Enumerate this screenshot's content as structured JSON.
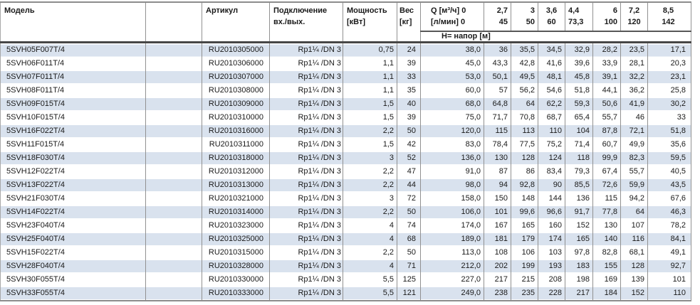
{
  "colors": {
    "stripe": "#d9e2ee",
    "grid_line": "#919191",
    "header_rule": "#575757",
    "outer_rule": "#8c8c8c",
    "text": "#1a1a1a"
  },
  "table": {
    "headers": {
      "model": "Модель",
      "empty": "",
      "article": "Артикул",
      "connection_line1": "Подключение",
      "connection_line2": "вх./вых.",
      "power_line1": "Мощность",
      "power_line2": "[кВт]",
      "weight_line1": "Вес",
      "weight_line2": "[кг]",
      "flow_line1": "Q [м³/ч] 0",
      "flow_line2": "[л/мин] 0",
      "head_row_label": "Н= напор [м]"
    },
    "flow_columns": [
      {
        "m3h": "2,7",
        "lmin": "45",
        "align": "right"
      },
      {
        "m3h": "3",
        "lmin": "50",
        "align": "right"
      },
      {
        "m3h": "3,6",
        "lmin": "60",
        "align": "center"
      },
      {
        "m3h": "4,4",
        "lmin": "73,3",
        "align": "left"
      },
      {
        "m3h": "6",
        "lmin": "100",
        "align": "right"
      },
      {
        "m3h": "7,2",
        "lmin": "120",
        "align": "center"
      },
      {
        "m3h": "8,5",
        "lmin": "142",
        "align": "center"
      }
    ],
    "rows": [
      {
        "model": "5SVH05F007T/4",
        "article": "RU2010305000",
        "connection": "Rp1¼ /DN 3",
        "power": "0,75",
        "weight": "24",
        "head_values": [
          "38,0",
          "36",
          "35,5",
          "34,5",
          "32,9",
          "28,2",
          "23,5",
          "17,1"
        ]
      },
      {
        "model": "5SVH06F011T/4",
        "article": "RU2010306000",
        "connection": "Rp1¼ /DN 3",
        "power": "1,1",
        "weight": "39",
        "head_values": [
          "45,0",
          "43,3",
          "42,8",
          "41,6",
          "39,6",
          "33,9",
          "28,1",
          "20,3"
        ]
      },
      {
        "model": "5SVH07F011T/4",
        "article": "RU2010307000",
        "connection": "Rp1¼ /DN 3",
        "power": "1,1",
        "weight": "33",
        "head_values": [
          "53,0",
          "50,1",
          "49,5",
          "48,1",
          "45,8",
          "39,1",
          "32,2",
          "23,1"
        ]
      },
      {
        "model": "5SVH08F011T/4",
        "article": "RU2010308000",
        "connection": "Rp1¼ /DN 3",
        "power": "1,1",
        "weight": "35",
        "head_values": [
          "60,0",
          "57",
          "56,2",
          "54,6",
          "51,8",
          "44,1",
          "36,2",
          "25,8"
        ]
      },
      {
        "model": "5SVH09F015T/4",
        "article": "RU2010309000",
        "connection": "Rp1¼ /DN 3",
        "power": "1,5",
        "weight": "40",
        "head_values": [
          "68,0",
          "64,8",
          "64",
          "62,2",
          "59,3",
          "50,6",
          "41,9",
          "30,2"
        ]
      },
      {
        "model": "5SVH10F015T/4",
        "article": "RU2010310000",
        "connection": "Rp1¼ /DN 3",
        "power": "1,5",
        "weight": "39",
        "head_values": [
          "75,0",
          "71,7",
          "70,8",
          "68,7",
          "65,4",
          "55,7",
          "46",
          "33"
        ]
      },
      {
        "model": "5SVH16F022T/4",
        "article": "RU2010316000",
        "connection": "Rp1¼ /DN 3",
        "power": "2,2",
        "weight": "50",
        "head_values": [
          "120,0",
          "115",
          "113",
          "110",
          "104",
          "87,8",
          "72,1",
          "51,8"
        ]
      },
      {
        "model": "5SVH11F015T/4",
        "article": "RU2010311000",
        "connection": "Rp1¼ /DN 3",
        "power": "1,5",
        "weight": "42",
        "head_values": [
          "83,0",
          "78,4",
          "77,5",
          "75,2",
          "71,4",
          "60,7",
          "49,9",
          "35,6"
        ]
      },
      {
        "model": "5SVH18F030T/4",
        "article": "RU2010318000",
        "connection": "Rp1¼ /DN 3",
        "power": "3",
        "weight": "52",
        "head_values": [
          "136,0",
          "130",
          "128",
          "124",
          "118",
          "99,9",
          "82,3",
          "59,5"
        ]
      },
      {
        "model": "5SVH12F022T/4",
        "article": "RU2010312000",
        "connection": "Rp1¼ /DN 3",
        "power": "2,2",
        "weight": "47",
        "head_values": [
          "91,0",
          "87",
          "86",
          "83,4",
          "79,3",
          "67,4",
          "55,7",
          "40,5"
        ]
      },
      {
        "model": "5SVH13F022T/4",
        "article": "RU2010313000",
        "connection": "Rp1¼ /DN 3",
        "power": "2,2",
        "weight": "44",
        "head_values": [
          "98,0",
          "94",
          "92,8",
          "90",
          "85,5",
          "72,6",
          "59,9",
          "43,5"
        ]
      },
      {
        "model": "5SVH21F030T/4",
        "article": "RU2010321000",
        "connection": "Rp1¼ /DN 3",
        "power": "3",
        "weight": "72",
        "head_values": [
          "158,0",
          "150",
          "148",
          "144",
          "136",
          "115",
          "94,2",
          "67,6"
        ]
      },
      {
        "model": "5SVH14F022T/4",
        "article": "RU2010314000",
        "connection": "Rp1¼ /DN 3",
        "power": "2,2",
        "weight": "50",
        "head_values": [
          "106,0",
          "101",
          "99,6",
          "96,6",
          "91,7",
          "77,8",
          "64",
          "46,3"
        ]
      },
      {
        "model": "5SVH23F040T/4",
        "article": "RU2010323000",
        "connection": "Rp1¼ /DN 3",
        "power": "4",
        "weight": "74",
        "head_values": [
          "174,0",
          "167",
          "165",
          "160",
          "152",
          "130",
          "107",
          "78,2"
        ]
      },
      {
        "model": "5SVH25F040T/4",
        "article": "RU2010325000",
        "connection": "Rp1¼ /DN 3",
        "power": "4",
        "weight": "68",
        "head_values": [
          "189,0",
          "181",
          "179",
          "174",
          "165",
          "140",
          "116",
          "84,1"
        ]
      },
      {
        "model": "5SVH15F022T/4",
        "article": "RU2010315000",
        "connection": "Rp1¼ /DN 3",
        "power": "2,2",
        "weight": "50",
        "head_values": [
          "113,0",
          "108",
          "106",
          "103",
          "97,8",
          "82,8",
          "68,1",
          "49,1"
        ]
      },
      {
        "model": "5SVH28F040T/4",
        "article": "RU2010328000",
        "connection": "Rp1¼ /DN 3",
        "power": "4",
        "weight": "71",
        "head_values": [
          "212,0",
          "202",
          "199",
          "193",
          "183",
          "155",
          "128",
          "92,7"
        ]
      },
      {
        "model": "5SVH30F055T/4",
        "article": "RU2010330000",
        "connection": "Rp1¼ /DN 3",
        "power": "5,5",
        "weight": "125",
        "head_values": [
          "227,0",
          "217",
          "215",
          "208",
          "198",
          "169",
          "139",
          "101"
        ]
      },
      {
        "model": "5SVH33F055T/4",
        "article": "RU2010333000",
        "connection": "Rp1¼ /DN 3",
        "power": "5,5",
        "weight": "121",
        "head_values": [
          "249,0",
          "238",
          "235",
          "228",
          "217",
          "184",
          "152",
          "110"
        ]
      }
    ]
  }
}
